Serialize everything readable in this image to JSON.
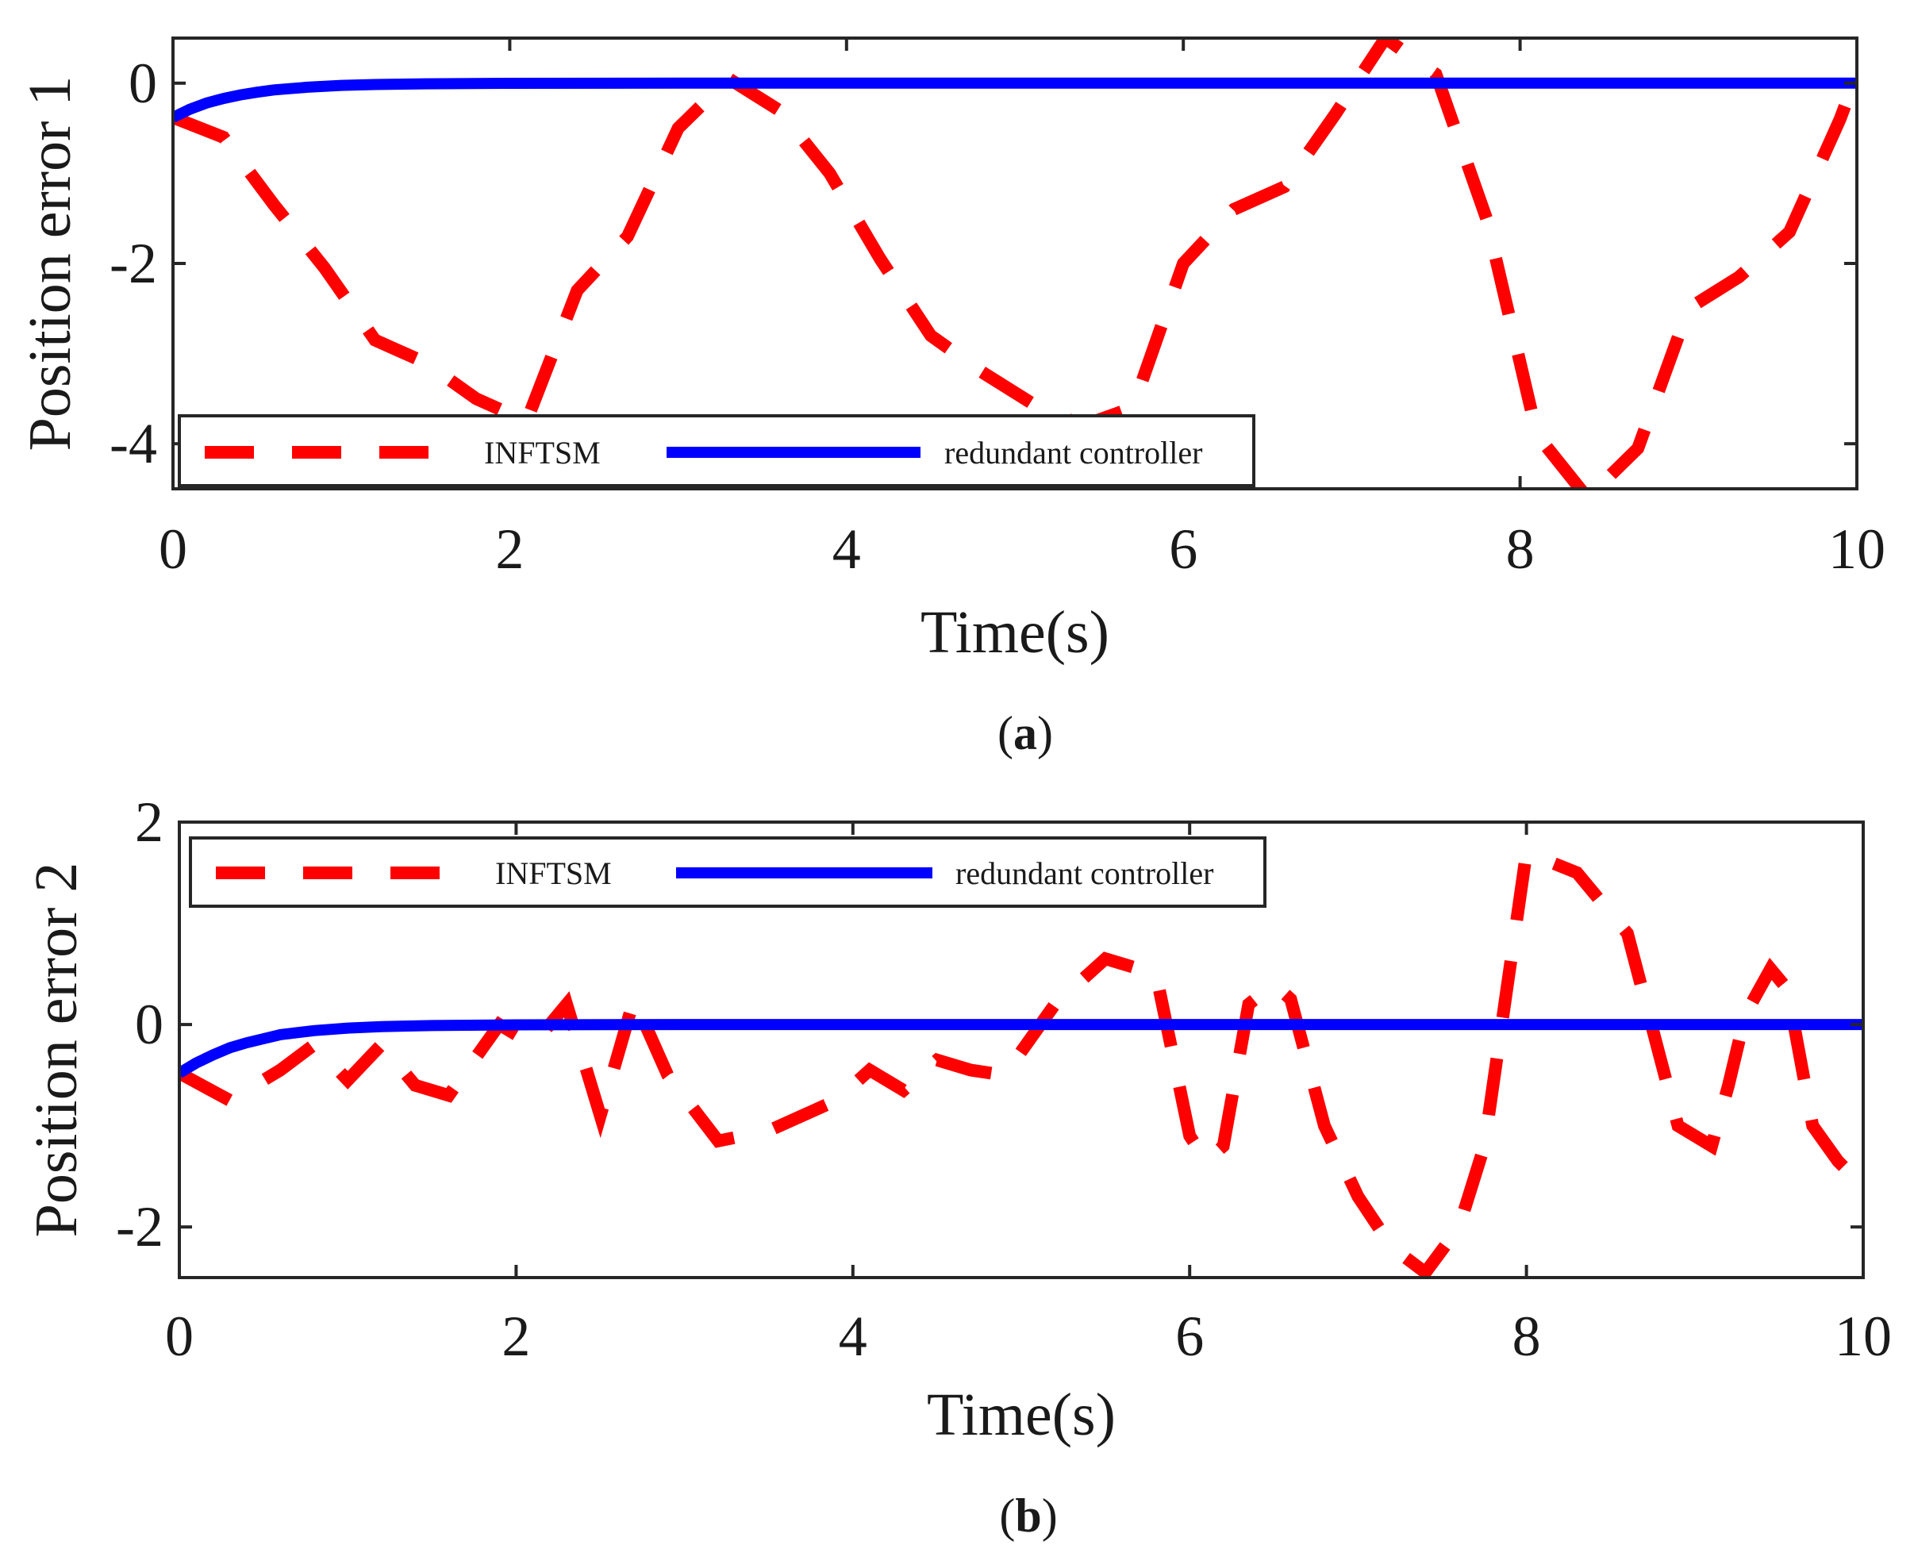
{
  "chart_data": [
    {
      "type": "line",
      "caption_letter": "a",
      "xlabel": "Time(s)",
      "ylabel": "Position error 1",
      "xlim": [
        0,
        10
      ],
      "ylim": [
        -4.5,
        0.5
      ],
      "xticks": [
        0,
        2,
        4,
        6,
        8,
        10
      ],
      "yticks": [
        0,
        -2,
        -4
      ],
      "legend_position": "bottom-left",
      "series": [
        {
          "name": "INFTSM",
          "color": "#ff0000",
          "style": "dashed",
          "x": [
            0,
            0.3,
            0.6,
            0.9,
            1.2,
            1.5,
            1.8,
            2.1,
            2.4,
            2.7,
            3.0,
            3.3,
            3.6,
            3.9,
            4.2,
            4.5,
            4.8,
            5.1,
            5.4,
            5.7,
            6.0,
            6.3,
            6.6,
            6.9,
            7.2,
            7.5,
            7.8,
            8.1,
            8.4,
            8.7,
            9.0,
            9.3,
            9.6,
            9.9,
            10
          ],
          "y": [
            -0.38,
            -0.6,
            -1.35,
            -2.05,
            -2.85,
            -3.1,
            -3.5,
            -3.75,
            -2.3,
            -1.7,
            -0.5,
            0.05,
            -0.3,
            -1.0,
            -1.95,
            -2.8,
            -3.2,
            -3.55,
            -3.8,
            -3.6,
            -2.0,
            -1.4,
            -1.15,
            -0.35,
            0.5,
            0.1,
            -1.5,
            -3.9,
            -4.6,
            -4.05,
            -2.5,
            -2.15,
            -1.65,
            -0.4,
            0.1
          ]
        },
        {
          "name": "redundant controller",
          "color": "#0000ff",
          "style": "solid",
          "x": [
            0,
            0.1,
            0.2,
            0.3,
            0.4,
            0.5,
            0.6,
            0.8,
            1.0,
            1.2,
            1.5,
            2.0,
            3.0,
            4.0,
            6.0,
            8.0,
            10.0
          ],
          "y": [
            -0.38,
            -0.29,
            -0.22,
            -0.17,
            -0.13,
            -0.1,
            -0.075,
            -0.045,
            -0.025,
            -0.015,
            -0.007,
            -0.002,
            0,
            0,
            0,
            0,
            0
          ]
        }
      ]
    },
    {
      "type": "line",
      "caption_letter": "b",
      "xlabel": "Time(s)",
      "ylabel": "Position error 2",
      "xlim": [
        0,
        10
      ],
      "ylim": [
        -2.5,
        2.0
      ],
      "xticks": [
        0,
        2,
        4,
        6,
        8,
        10
      ],
      "yticks": [
        2,
        0,
        -2
      ],
      "legend_position": "top-left",
      "series": [
        {
          "name": "INFTSM",
          "color": "#ff0000",
          "style": "dashed",
          "x": [
            0,
            0.3,
            0.6,
            0.8,
            1.0,
            1.2,
            1.4,
            1.6,
            1.9,
            2.1,
            2.3,
            2.5,
            2.7,
            2.9,
            3.2,
            3.5,
            3.9,
            4.1,
            4.3,
            4.5,
            4.7,
            4.9,
            5.2,
            5.5,
            5.8,
            6.0,
            6.1,
            6.2,
            6.35,
            6.5,
            6.6,
            6.8,
            7.0,
            7.2,
            7.4,
            7.6,
            7.75,
            8.0,
            8.3,
            8.6,
            8.9,
            9.1,
            9.2,
            9.3,
            9.45,
            9.55,
            9.7,
            9.85,
            10.0
          ],
          "y": [
            -0.48,
            -0.75,
            -0.45,
            -0.2,
            -0.55,
            -0.2,
            -0.6,
            -0.7,
            0.0,
            -0.2,
            0.2,
            -0.9,
            0.25,
            -0.5,
            -1.15,
            -1.05,
            -0.75,
            -0.45,
            -0.65,
            -0.35,
            -0.45,
            -0.5,
            0.2,
            0.65,
            0.5,
            -1.1,
            -1.35,
            -1.2,
            0.2,
            0.4,
            0.25,
            -1.0,
            -1.7,
            -2.2,
            -2.45,
            -2.0,
            -1.2,
            1.7,
            1.5,
            0.9,
            -1.0,
            -1.2,
            -0.6,
            0.1,
            0.55,
            0.35,
            -1.0,
            -1.35,
            -1.6
          ]
        },
        {
          "name": "redundant controller",
          "color": "#0000ff",
          "style": "solid",
          "x": [
            0,
            0.1,
            0.2,
            0.3,
            0.4,
            0.5,
            0.6,
            0.8,
            1.0,
            1.2,
            1.5,
            2.0,
            3.0,
            4.0,
            6.0,
            8.0,
            10.0
          ],
          "y": [
            -0.48,
            -0.38,
            -0.3,
            -0.23,
            -0.18,
            -0.14,
            -0.1,
            -0.06,
            -0.035,
            -0.02,
            -0.01,
            -0.003,
            0,
            0,
            0,
            0,
            0
          ]
        }
      ]
    }
  ]
}
